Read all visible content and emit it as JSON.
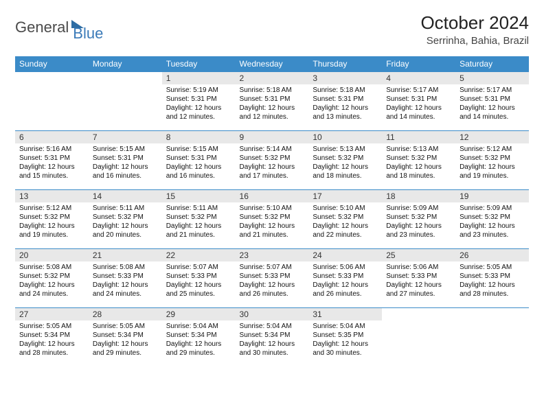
{
  "brand": {
    "part1": "General",
    "part2": "Blue"
  },
  "title": "October 2024",
  "location": "Serrinha, Bahia, Brazil",
  "colors": {
    "header_bg": "#3b8bc8",
    "header_text": "#ffffff",
    "daynum_bg": "#e8e8e8",
    "row_border": "#3b8bc8",
    "brand_gray": "#4a4a4a",
    "brand_blue": "#3a7ab8"
  },
  "day_headers": [
    "Sunday",
    "Monday",
    "Tuesday",
    "Wednesday",
    "Thursday",
    "Friday",
    "Saturday"
  ],
  "weeks": [
    [
      null,
      null,
      {
        "n": "1",
        "sr": "5:19 AM",
        "ss": "5:31 PM",
        "dl": "12 hours and 12 minutes."
      },
      {
        "n": "2",
        "sr": "5:18 AM",
        "ss": "5:31 PM",
        "dl": "12 hours and 12 minutes."
      },
      {
        "n": "3",
        "sr": "5:18 AM",
        "ss": "5:31 PM",
        "dl": "12 hours and 13 minutes."
      },
      {
        "n": "4",
        "sr": "5:17 AM",
        "ss": "5:31 PM",
        "dl": "12 hours and 14 minutes."
      },
      {
        "n": "5",
        "sr": "5:17 AM",
        "ss": "5:31 PM",
        "dl": "12 hours and 14 minutes."
      }
    ],
    [
      {
        "n": "6",
        "sr": "5:16 AM",
        "ss": "5:31 PM",
        "dl": "12 hours and 15 minutes."
      },
      {
        "n": "7",
        "sr": "5:15 AM",
        "ss": "5:31 PM",
        "dl": "12 hours and 16 minutes."
      },
      {
        "n": "8",
        "sr": "5:15 AM",
        "ss": "5:31 PM",
        "dl": "12 hours and 16 minutes."
      },
      {
        "n": "9",
        "sr": "5:14 AM",
        "ss": "5:32 PM",
        "dl": "12 hours and 17 minutes."
      },
      {
        "n": "10",
        "sr": "5:13 AM",
        "ss": "5:32 PM",
        "dl": "12 hours and 18 minutes."
      },
      {
        "n": "11",
        "sr": "5:13 AM",
        "ss": "5:32 PM",
        "dl": "12 hours and 18 minutes."
      },
      {
        "n": "12",
        "sr": "5:12 AM",
        "ss": "5:32 PM",
        "dl": "12 hours and 19 minutes."
      }
    ],
    [
      {
        "n": "13",
        "sr": "5:12 AM",
        "ss": "5:32 PM",
        "dl": "12 hours and 19 minutes."
      },
      {
        "n": "14",
        "sr": "5:11 AM",
        "ss": "5:32 PM",
        "dl": "12 hours and 20 minutes."
      },
      {
        "n": "15",
        "sr": "5:11 AM",
        "ss": "5:32 PM",
        "dl": "12 hours and 21 minutes."
      },
      {
        "n": "16",
        "sr": "5:10 AM",
        "ss": "5:32 PM",
        "dl": "12 hours and 21 minutes."
      },
      {
        "n": "17",
        "sr": "5:10 AM",
        "ss": "5:32 PM",
        "dl": "12 hours and 22 minutes."
      },
      {
        "n": "18",
        "sr": "5:09 AM",
        "ss": "5:32 PM",
        "dl": "12 hours and 23 minutes."
      },
      {
        "n": "19",
        "sr": "5:09 AM",
        "ss": "5:32 PM",
        "dl": "12 hours and 23 minutes."
      }
    ],
    [
      {
        "n": "20",
        "sr": "5:08 AM",
        "ss": "5:32 PM",
        "dl": "12 hours and 24 minutes."
      },
      {
        "n": "21",
        "sr": "5:08 AM",
        "ss": "5:33 PM",
        "dl": "12 hours and 24 minutes."
      },
      {
        "n": "22",
        "sr": "5:07 AM",
        "ss": "5:33 PM",
        "dl": "12 hours and 25 minutes."
      },
      {
        "n": "23",
        "sr": "5:07 AM",
        "ss": "5:33 PM",
        "dl": "12 hours and 26 minutes."
      },
      {
        "n": "24",
        "sr": "5:06 AM",
        "ss": "5:33 PM",
        "dl": "12 hours and 26 minutes."
      },
      {
        "n": "25",
        "sr": "5:06 AM",
        "ss": "5:33 PM",
        "dl": "12 hours and 27 minutes."
      },
      {
        "n": "26",
        "sr": "5:05 AM",
        "ss": "5:33 PM",
        "dl": "12 hours and 28 minutes."
      }
    ],
    [
      {
        "n": "27",
        "sr": "5:05 AM",
        "ss": "5:34 PM",
        "dl": "12 hours and 28 minutes."
      },
      {
        "n": "28",
        "sr": "5:05 AM",
        "ss": "5:34 PM",
        "dl": "12 hours and 29 minutes."
      },
      {
        "n": "29",
        "sr": "5:04 AM",
        "ss": "5:34 PM",
        "dl": "12 hours and 29 minutes."
      },
      {
        "n": "30",
        "sr": "5:04 AM",
        "ss": "5:34 PM",
        "dl": "12 hours and 30 minutes."
      },
      {
        "n": "31",
        "sr": "5:04 AM",
        "ss": "5:35 PM",
        "dl": "12 hours and 30 minutes."
      },
      null,
      null
    ]
  ],
  "labels": {
    "sunrise": "Sunrise:",
    "sunset": "Sunset:",
    "daylight": "Daylight:"
  }
}
